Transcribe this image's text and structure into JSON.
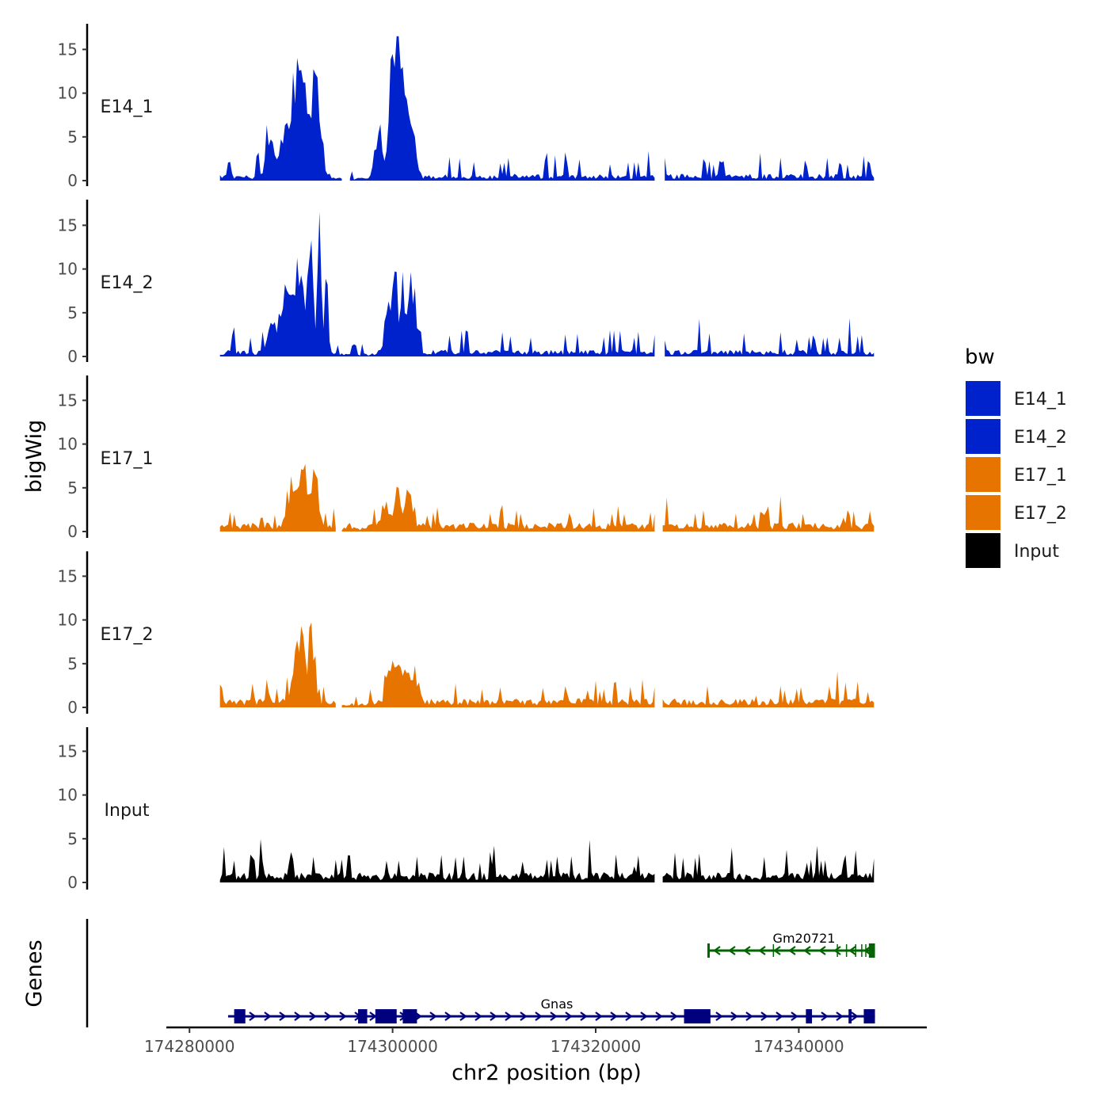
{
  "chart_data": {
    "type": "area",
    "title": "",
    "ylabel": "bigWig",
    "xlabel": "chr2 position (bp)",
    "ylim": [
      0,
      17
    ],
    "yticks": [
      0,
      5,
      10,
      15
    ],
    "xlim": [
      174278500,
      174350500
    ],
    "xticks": [
      174280000,
      174300000,
      174320000,
      174340000
    ],
    "data_range": [
      174283000,
      174347500
    ],
    "legend": {
      "title": "bw",
      "position": "right",
      "items": [
        {
          "name": "E14_1",
          "color": "#0022cc"
        },
        {
          "name": "E14_2",
          "color": "#0022cc"
        },
        {
          "name": "E17_1",
          "color": "#e87400"
        },
        {
          "name": "E17_2",
          "color": "#e87400"
        },
        {
          "name": "Input",
          "color": "#000000"
        }
      ]
    },
    "series": [
      {
        "name": "E14_1",
        "color": "#0022cc",
        "peaks": [
          [
            174290500,
            8.7,
            650
          ],
          [
            174291200,
            9.6,
            450
          ],
          [
            174292400,
            11.8,
            600
          ],
          [
            174289500,
            5.0,
            700
          ],
          [
            174288000,
            3.8,
            550
          ],
          [
            174286700,
            5.8,
            120
          ],
          [
            174287600,
            3.6,
            150
          ],
          [
            174300500,
            14.8,
            450
          ],
          [
            174299800,
            10.2,
            350
          ],
          [
            174301200,
            8.4,
            500
          ],
          [
            174302000,
            5.8,
            400
          ],
          [
            174298600,
            4.8,
            500
          ]
        ],
        "baseline": 0.6,
        "noise": 1.1,
        "gaps": [
          [
            174295200,
            174295700
          ],
          [
            174326000,
            174326600
          ]
        ],
        "trough": [
          174294000,
          174298300
        ]
      },
      {
        "name": "E14_2",
        "color": "#0022cc",
        "peaks": [
          [
            174290700,
            9.6,
            750
          ],
          [
            174292800,
            15.8,
            250
          ],
          [
            174291900,
            11.5,
            350
          ],
          [
            174289500,
            7.8,
            500
          ],
          [
            174293500,
            9.4,
            220
          ],
          [
            174288200,
            3.4,
            600
          ],
          [
            174300300,
            10.2,
            250
          ],
          [
            174301000,
            10.0,
            250
          ],
          [
            174301700,
            8.8,
            250
          ],
          [
            174302200,
            8.2,
            220
          ],
          [
            174299600,
            6.4,
            450
          ],
          [
            174307300,
            3.3,
            180
          ]
        ],
        "baseline": 0.6,
        "noise": 1.2,
        "gaps": [
          [
            174326000,
            174326600
          ]
        ],
        "trough": [
          174294000,
          174298600
        ]
      },
      {
        "name": "E17_1",
        "color": "#e87400",
        "peaks": [
          [
            174291200,
            6.3,
            650
          ],
          [
            174292400,
            6.8,
            400
          ],
          [
            174290000,
            3.5,
            600
          ],
          [
            174300500,
            5.5,
            350
          ],
          [
            174301600,
            4.8,
            450
          ],
          [
            174299300,
            2.9,
            500
          ]
        ],
        "baseline": 0.8,
        "noise": 0.9,
        "gaps": [
          [
            174294500,
            174294900
          ],
          [
            174326000,
            174326500
          ]
        ],
        "trough": [
          174294800,
          174297600
        ]
      },
      {
        "name": "E17_2",
        "color": "#e87400",
        "peaks": [
          [
            174291100,
            6.8,
            300
          ],
          [
            174292000,
            7.8,
            400
          ],
          [
            174290500,
            5.0,
            500
          ],
          [
            174299700,
            3.8,
            450
          ],
          [
            174300700,
            4.3,
            700
          ],
          [
            174302000,
            3.1,
            600
          ],
          [
            174286200,
            2.8,
            180
          ]
        ],
        "baseline": 0.8,
        "noise": 1.0,
        "gaps": [
          [
            174294500,
            174294900
          ],
          [
            174326000,
            174326500
          ]
        ],
        "trough": [
          174294800,
          174297800
        ]
      },
      {
        "name": "Input",
        "color": "#000000",
        "peaks": [
          [
            174310000,
            3.2,
            120
          ]
        ],
        "baseline": 0.9,
        "noise": 1.3,
        "gaps": [
          [
            174326000,
            174326500
          ]
        ],
        "trough": null
      }
    ],
    "genes": {
      "title": "Genes",
      "items": [
        {
          "name": "Gm20721",
          "color": "#006400",
          "strand": "-",
          "row": 1,
          "start": 174331000,
          "end": 174347500,
          "exons": [
            [
              174331000,
              174331200
            ],
            [
              174346900,
              174347500
            ]
          ]
        },
        {
          "name": "Gnas",
          "color": "#00007f",
          "strand": "+",
          "row": 0,
          "start": 174283800,
          "end": 174347500,
          "exons": [
            [
              174284400,
              174285500
            ],
            [
              174296600,
              174297500
            ],
            [
              174298300,
              174300400
            ],
            [
              174301000,
              174302400
            ],
            [
              174328700,
              174331300
            ],
            [
              174340700,
              174341300
            ],
            [
              174344900,
              174345200
            ],
            [
              174346400,
              174347500
            ]
          ]
        }
      ]
    }
  }
}
